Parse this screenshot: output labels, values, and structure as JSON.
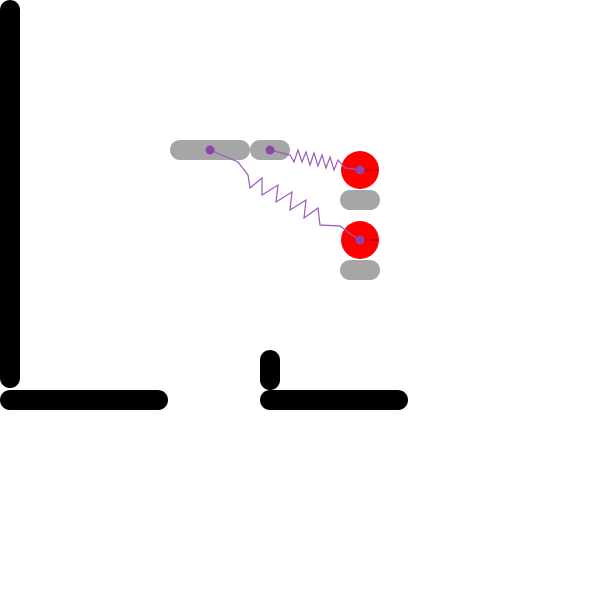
{
  "scene": {
    "background": "#ffffff",
    "colors": {
      "wall": "#000000",
      "platform": "#a6a6a6",
      "ball": "#ff0000",
      "pin": "#8e44ad",
      "spring": "#9b59b6"
    },
    "objects": {
      "walls": [
        {
          "id": "left-wall",
          "kind": "wall"
        },
        {
          "id": "floor-left",
          "kind": "wall"
        },
        {
          "id": "floor-right",
          "kind": "wall"
        },
        {
          "id": "floor-post",
          "kind": "wall"
        }
      ],
      "platforms": [
        {
          "id": "platform-long",
          "kind": "static-platform"
        },
        {
          "id": "platform-short",
          "kind": "static-platform"
        },
        {
          "id": "platform-under-upper-ball",
          "kind": "static-platform"
        },
        {
          "id": "platform-under-lower-ball",
          "kind": "static-platform"
        }
      ],
      "balls": [
        {
          "id": "ball-upper",
          "kind": "dynamic-ball"
        },
        {
          "id": "ball-lower",
          "kind": "dynamic-ball"
        }
      ],
      "springs": [
        {
          "id": "spring-upper",
          "from": "platform-short",
          "to": "ball-upper"
        },
        {
          "id": "spring-lower",
          "from": "platform-long",
          "to": "ball-lower"
        }
      ]
    }
  }
}
